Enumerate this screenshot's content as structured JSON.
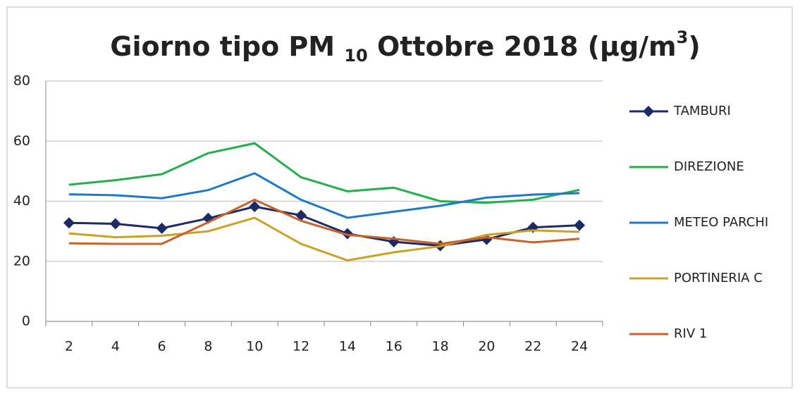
{
  "chart_data": {
    "type": "line",
    "title": [
      "Giorno tipo PM ",
      "10",
      " Ottobre 2018 (µg/m",
      "3",
      ")"
    ],
    "categories": [
      "2",
      "4",
      "6",
      "8",
      "10",
      "12",
      "14",
      "16",
      "18",
      "20",
      "22",
      "24"
    ],
    "series": [
      {
        "name": "TAMBURI",
        "color": "#1c2a66",
        "marker": "diamond",
        "values": [
          32.8,
          32.5,
          31,
          34.3,
          38.2,
          35.3,
          29.2,
          26.5,
          25.2,
          27.3,
          31.3,
          32
        ]
      },
      {
        "name": "DIREZIONE",
        "color": "#22b04b",
        "values": [
          45.5,
          47,
          49,
          56,
          59.3,
          48,
          43.3,
          44.5,
          40,
          39.5,
          40.5,
          43.8
        ]
      },
      {
        "name": "METEO PARCHI",
        "color": "#1f7ac4",
        "values": [
          42.3,
          42,
          41,
          43.7,
          49.3,
          40.5,
          34.5,
          36.5,
          38.5,
          41.2,
          42.2,
          42.7
        ]
      },
      {
        "name": "PORTINERIA C",
        "color": "#c9a227",
        "values": [
          29.3,
          28,
          28.5,
          30,
          34.5,
          25.8,
          20.3,
          23,
          25,
          28.8,
          30.3,
          29.8
        ]
      },
      {
        "name": "RIV 1",
        "color": "#c8632a",
        "values": [
          26,
          25.8,
          25.8,
          33,
          40.5,
          33.5,
          28.8,
          27.5,
          25.8,
          28,
          26.3,
          27.5
        ]
      }
    ],
    "ylim": [
      0,
      80
    ],
    "yticks": [
      0,
      20,
      40,
      60,
      80
    ],
    "grid": true,
    "legend": "right"
  }
}
